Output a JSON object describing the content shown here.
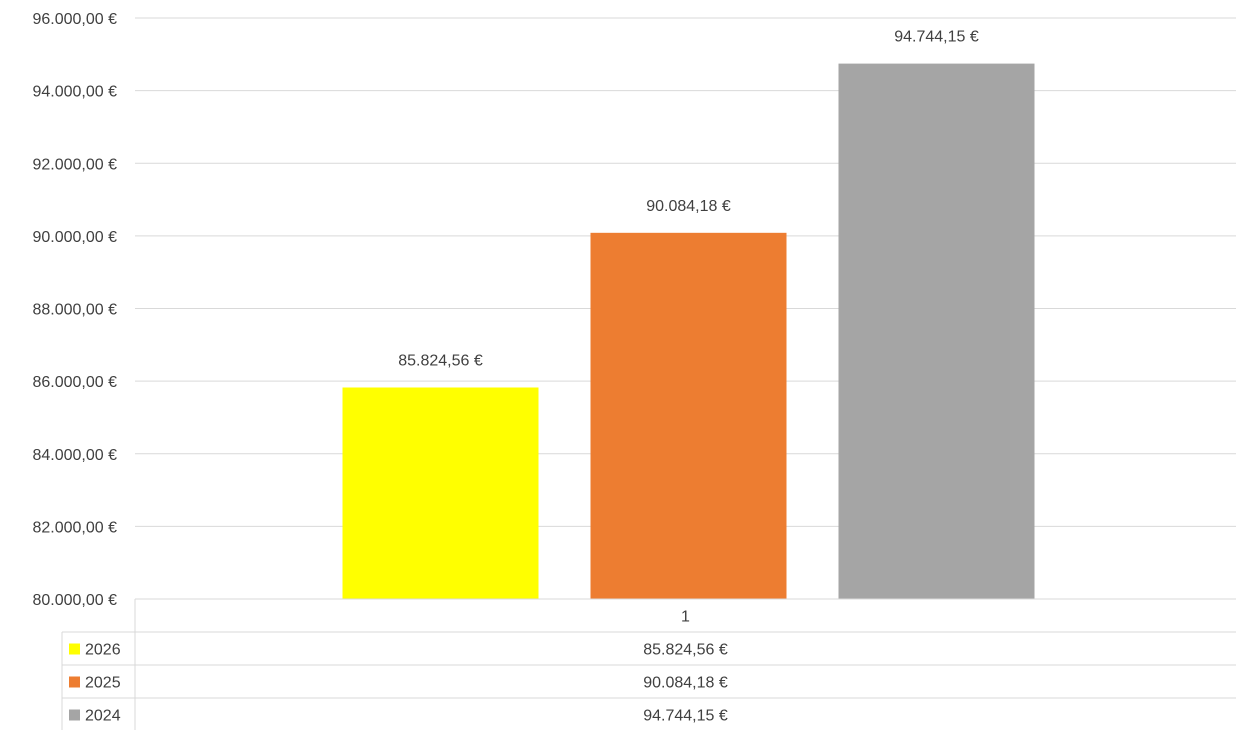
{
  "chart_data": {
    "type": "bar",
    "categories": [
      "1"
    ],
    "series": [
      {
        "name": "2026",
        "color": "#FFFF00",
        "values": [
          85824.56
        ],
        "label": "85.824,56 €"
      },
      {
        "name": "2025",
        "color": "#ED7D31",
        "values": [
          90084.18
        ],
        "label": "90.084,18 €"
      },
      {
        "name": "2024",
        "color": "#A5A5A5",
        "values": [
          94744.15
        ],
        "label": "94.744,15 €"
      }
    ],
    "ylim": [
      80000,
      96000
    ],
    "ytick_step": 2000,
    "ytick_labels": [
      "80.000,00 €",
      "82.000,00 €",
      "84.000,00 €",
      "86.000,00 €",
      "88.000,00 €",
      "90.000,00 €",
      "92.000,00 €",
      "94.000,00 €",
      "96.000,00 €"
    ],
    "grid": true,
    "legend": "data-table"
  }
}
